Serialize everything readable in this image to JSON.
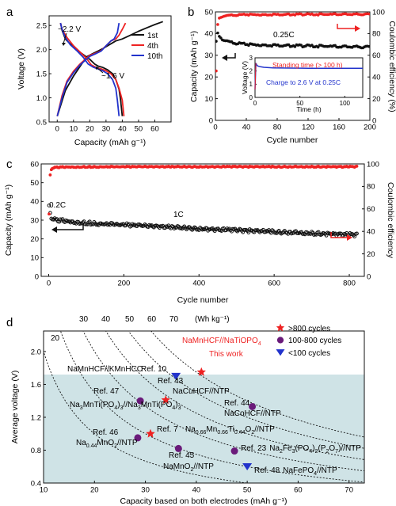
{
  "figure": {
    "panel_letters": [
      "a",
      "b",
      "c",
      "d"
    ]
  },
  "colors": {
    "black": "#111111",
    "red": "#ee2222",
    "blue": "#2233cc",
    "purple": "#6a1a7a",
    "teal_region": "#cfe3e6"
  },
  "chart_data": [
    {
      "panel": "a",
      "type": "line",
      "xlabel": "Capacity (mAh g⁻¹)",
      "ylabel": "Voltage (V)",
      "xlim": [
        -5,
        70
      ],
      "ylim": [
        0.5,
        2.7
      ],
      "xticks": [
        0,
        10,
        20,
        30,
        40,
        50,
        60
      ],
      "yticks": [
        0.5,
        1.0,
        1.5,
        2.0,
        2.5
      ],
      "annotations": [
        "~2.2 V",
        "~1.6 V"
      ],
      "legend": "top-right",
      "series": [
        {
          "name": "1st",
          "color": "#111111",
          "x": [
            0,
            5,
            10,
            15,
            18,
            22,
            25,
            28,
            30,
            33,
            36,
            40,
            45,
            50,
            55,
            60,
            65
          ],
          "y": [
            0.62,
            1.15,
            1.45,
            1.7,
            1.85,
            1.92,
            1.97,
            2.02,
            2.06,
            2.12,
            2.18,
            2.22,
            2.3,
            2.38,
            2.45,
            2.52,
            2.58
          ]
        },
        {
          "name": "1st",
          "color": "#111111",
          "x": [
            40,
            39,
            38,
            36,
            34,
            31,
            28,
            25,
            23,
            20,
            15,
            10,
            5,
            3,
            2
          ],
          "y": [
            0.62,
            0.95,
            1.18,
            1.38,
            1.5,
            1.58,
            1.63,
            1.66,
            1.7,
            1.8,
            1.92,
            2.05,
            2.22,
            2.4,
            2.55
          ]
        },
        {
          "name": "4th",
          "color": "#ee2222",
          "x": [
            0,
            3,
            6,
            10,
            14,
            18,
            20,
            24,
            27,
            30,
            33,
            36,
            38,
            40,
            42
          ],
          "y": [
            0.62,
            1.05,
            1.35,
            1.55,
            1.7,
            1.82,
            1.88,
            1.93,
            1.98,
            2.08,
            2.18,
            2.22,
            2.3,
            2.42,
            2.55
          ]
        },
        {
          "name": "4th",
          "color": "#ee2222",
          "x": [
            41,
            40,
            38,
            36,
            33,
            30,
            27,
            24,
            21,
            18,
            14,
            10,
            6,
            3,
            2
          ],
          "y": [
            0.62,
            0.95,
            1.2,
            1.38,
            1.5,
            1.56,
            1.6,
            1.63,
            1.68,
            1.82,
            1.95,
            2.08,
            2.25,
            2.42,
            2.55
          ]
        },
        {
          "name": "10th",
          "color": "#2233cc",
          "x": [
            0,
            3,
            6,
            10,
            14,
            18,
            20,
            24,
            27,
            30,
            33,
            35,
            37,
            38
          ],
          "y": [
            0.62,
            1.0,
            1.32,
            1.52,
            1.68,
            1.8,
            1.86,
            1.92,
            1.97,
            2.08,
            2.18,
            2.22,
            2.35,
            2.55
          ]
        },
        {
          "name": "10th",
          "color": "#2233cc",
          "x": [
            38,
            37,
            36,
            34,
            31,
            28,
            25,
            22,
            19,
            16,
            12,
            8,
            5,
            3,
            2
          ],
          "y": [
            0.62,
            0.95,
            1.2,
            1.38,
            1.5,
            1.56,
            1.6,
            1.64,
            1.7,
            1.84,
            1.98,
            2.1,
            2.25,
            2.42,
            2.55
          ]
        }
      ]
    },
    {
      "panel": "b",
      "type": "scatter",
      "xlabel": "Cycle number",
      "ylabel": "Capacity (mAh g⁻¹)",
      "ylabel_right": "Coulombic efficiency (%)",
      "xlim": [
        0,
        200
      ],
      "ylim": [
        0,
        50
      ],
      "ylim_right": [
        0,
        100
      ],
      "xticks": [
        0,
        40,
        80,
        120,
        160,
        200
      ],
      "yticks": [
        0,
        10,
        20,
        30,
        40,
        50
      ],
      "yticks_right": [
        0,
        20,
        40,
        60,
        80,
        100
      ],
      "annotations": [
        "0.25C"
      ],
      "series": [
        {
          "name": "Capacity",
          "color": "#111111",
          "x": [
            1,
            3,
            5,
            10,
            20,
            30,
            40,
            60,
            80,
            100,
            120,
            140,
            160,
            180,
            200
          ],
          "y": [
            36,
            40,
            38.5,
            37,
            36,
            35.5,
            35,
            34.8,
            34.6,
            34.4,
            34.3,
            34.2,
            34.0,
            33.9,
            33.8
          ]
        },
        {
          "name": "Coulombic efficiency",
          "color": "#ee2222",
          "axis": "right",
          "x": [
            1,
            2,
            3,
            5,
            10,
            20,
            40,
            60,
            80,
            100,
            120,
            140,
            160,
            180,
            200
          ],
          "y": [
            45,
            75,
            88,
            94,
            96,
            97,
            97.5,
            97.5,
            97.6,
            97.6,
            97.7,
            97.7,
            97.8,
            97.8,
            97.8
          ]
        }
      ],
      "inset": {
        "type": "line",
        "xlabel": "Time (h)",
        "ylabel": "Voltage (V)",
        "xlim": [
          0,
          120
        ],
        "ylim": [
          0,
          3
        ],
        "xticks": [
          0,
          50,
          100
        ],
        "yticks": [
          0,
          1,
          2,
          3
        ],
        "annotations": [
          "Standing time (> 100 h)",
          "Charge to 2.6 V at 0.25C"
        ],
        "series": [
          {
            "name": "Voltage",
            "color": "#2233cc",
            "x": [
              0,
              1,
              2,
              3,
              6,
              10,
              20,
              40,
              60,
              80,
              100,
              120
            ],
            "y": [
              0.6,
              2.6,
              2.45,
              2.38,
              2.32,
              2.28,
              2.24,
              2.22,
              2.21,
              2.2,
              2.2,
              2.2
            ]
          }
        ]
      }
    },
    {
      "panel": "c",
      "type": "scatter",
      "xlabel": "Cycle number",
      "ylabel": "Capacity (mAh g⁻¹)",
      "ylabel_right": "Coulombic efficiency",
      "xlim": [
        -20,
        840
      ],
      "ylim": [
        0,
        60
      ],
      "ylim_right": [
        0,
        100
      ],
      "xticks": [
        0,
        200,
        400,
        600,
        800
      ],
      "yticks": [
        0,
        10,
        20,
        30,
        40,
        50,
        60
      ],
      "yticks_right": [
        0,
        20,
        40,
        60,
        80,
        100
      ],
      "annotations": [
        "0.2C",
        "1C"
      ],
      "series": [
        {
          "name": "Capacity",
          "color": "#111111",
          "x": [
            1,
            3,
            5,
            8,
            20,
            50,
            100,
            200,
            300,
            400,
            500,
            600,
            700,
            800,
            820
          ],
          "y": [
            37,
            36,
            31,
            30.5,
            30,
            29.5,
            28.5,
            27.5,
            26.5,
            25.5,
            24.5,
            23.8,
            23.0,
            22.2,
            22.0
          ]
        },
        {
          "name": "Coulombic efficiency",
          "color": "#ee2222",
          "axis": "right",
          "x": [
            1,
            2,
            3,
            5,
            10,
            20,
            50,
            100,
            200,
            300,
            400,
            500,
            600,
            700,
            800,
            820
          ],
          "y": [
            55,
            72,
            86,
            94,
            96,
            97,
            97.3,
            97.4,
            97.5,
            97.5,
            97.5,
            97.5,
            97.5,
            97.5,
            97.5,
            97.5
          ]
        }
      ]
    },
    {
      "panel": "d",
      "type": "scatter",
      "xlabel": "Capacity based on both electrodes (mAh g⁻¹)",
      "ylabel": "Average voltage (V)",
      "xlim": [
        10,
        73
      ],
      "ylim": [
        0.4,
        2.25
      ],
      "xticks": [
        10,
        20,
        30,
        40,
        50,
        60,
        70
      ],
      "yticks": [
        0.4,
        0.8,
        1.2,
        1.6,
        2.0
      ],
      "shaded_region_below_voltage": 1.72,
      "energy_density_unit": "(Wh kg⁻¹)",
      "energy_density_labels": [
        "20",
        "30",
        "40",
        "50",
        "60",
        "70"
      ],
      "energy_density_contours": [
        20,
        30,
        40,
        50,
        60,
        70
      ],
      "legend": "top-right",
      "legend_entries": [
        {
          "label": ">800 cycles",
          "marker": "star",
          "color": "#ee2222"
        },
        {
          "label": "100-800 cycles",
          "marker": "circle",
          "color": "#6a1a7a"
        },
        {
          "label": "<100 cycles",
          "marker": "triangle",
          "color": "#2233cc"
        }
      ],
      "points": [
        {
          "label": "This work",
          "x": 41,
          "y": 1.75,
          "marker": "star",
          "color": "#ee2222"
        },
        {
          "label": "NaCuHCF//NTP",
          "x": 34,
          "y": 1.41,
          "marker": "star",
          "color": "#ee2222"
        },
        {
          "label": "Ref. 7",
          "x": 31,
          "y": 1.0,
          "marker": "star",
          "color": "#ee2222"
        },
        {
          "label": "Ref. 47",
          "x": 29,
          "y": 1.4,
          "marker": "circle",
          "color": "#6a1a7a"
        },
        {
          "label": "Ref. 46",
          "x": 28.5,
          "y": 0.95,
          "marker": "circle",
          "color": "#6a1a7a"
        },
        {
          "label": "Ref. 45",
          "x": 36.5,
          "y": 0.82,
          "marker": "circle",
          "color": "#6a1a7a"
        },
        {
          "label": "Ref. 44",
          "x": 51,
          "y": 1.33,
          "marker": "circle",
          "color": "#6a1a7a"
        },
        {
          "label": "Ref. 23",
          "x": 47.5,
          "y": 0.79,
          "marker": "circle",
          "color": "#6a1a7a"
        },
        {
          "label": "Ref. 10",
          "x": 36,
          "y": 1.7,
          "marker": "triangle",
          "color": "#2233cc"
        },
        {
          "label": "Ref. 48",
          "x": 50,
          "y": 0.6,
          "marker": "triangle",
          "color": "#2233cc"
        }
      ],
      "text_labels": {
        "mnhcf_ntp": "NaMnHCF//NaTiOPO",
        "mnhcf_ntp_sub": "4",
        "this_work": "This work",
        "nmhcf_kmnhcc": "NaMnHCF//KMnHCC",
        "ref10": "Ref. 10",
        "ref43": "Ref. 43",
        "nacuhcf": "NaCuHCF//NTP",
        "ref47": "Ref. 47",
        "ref44": "Ref. 44",
        "nacohcf": "NaCoHCF//NTP",
        "ref46": "Ref. 46",
        "ref7": "Ref. 7",
        "ref45": "Ref. 45",
        "namno2": "NaMnO",
        "namno2_sub": "2",
        "namno2_tail": "//NTP",
        "ref23": "Ref. 23",
        "ref48": "Ref. 48",
        "nafepo4": "NaFePO",
        "nafepo4_sub": "4",
        "nafepo4_tail": "//NTP",
        "na3_part1": "Na",
        "na3_sub1": "3",
        "na3_part2": "MnTi(PO",
        "na3_sub2": "4",
        "na3_part3": ")",
        "na3_sub3": "3",
        "na3_part4": "//Na",
        "na3_sub4": "3",
        "na3_part5": "MnTi(PO",
        "na3_sub5": "4",
        "na3_part6": ")",
        "na3_sub6": "3",
        "na044_part1": "Na",
        "na044_sub1": "0.44",
        "na044_part2": "MnO",
        "na044_sub2": "2",
        "na044_part3": "//NTP",
        "na066_part1": "Na",
        "na066_sub1": "0.66",
        "na066_part2": "Mn",
        "na066_sub2": "0.66",
        "na066_part3": "Ti",
        "na066_sub3": "0.44",
        "na066_part4": "O",
        "na066_sub4": "2",
        "na066_part5": "//NTP",
        "na2fe_part1": "Na",
        "na2fe_sub1": "2",
        "na2fe_part2": "Fe",
        "na2fe_sub2": "3",
        "na2fe_part3": "(PO",
        "na2fe_sub3": "4",
        "na2fe_part4": ")",
        "na2fe_sub4": "2",
        "na2fe_part5": "(P",
        "na2fe_sub5": "2",
        "na2fe_part6": "O",
        "na2fe_sub6": "7",
        "na2fe_part7": ")//NTP"
      }
    }
  ]
}
